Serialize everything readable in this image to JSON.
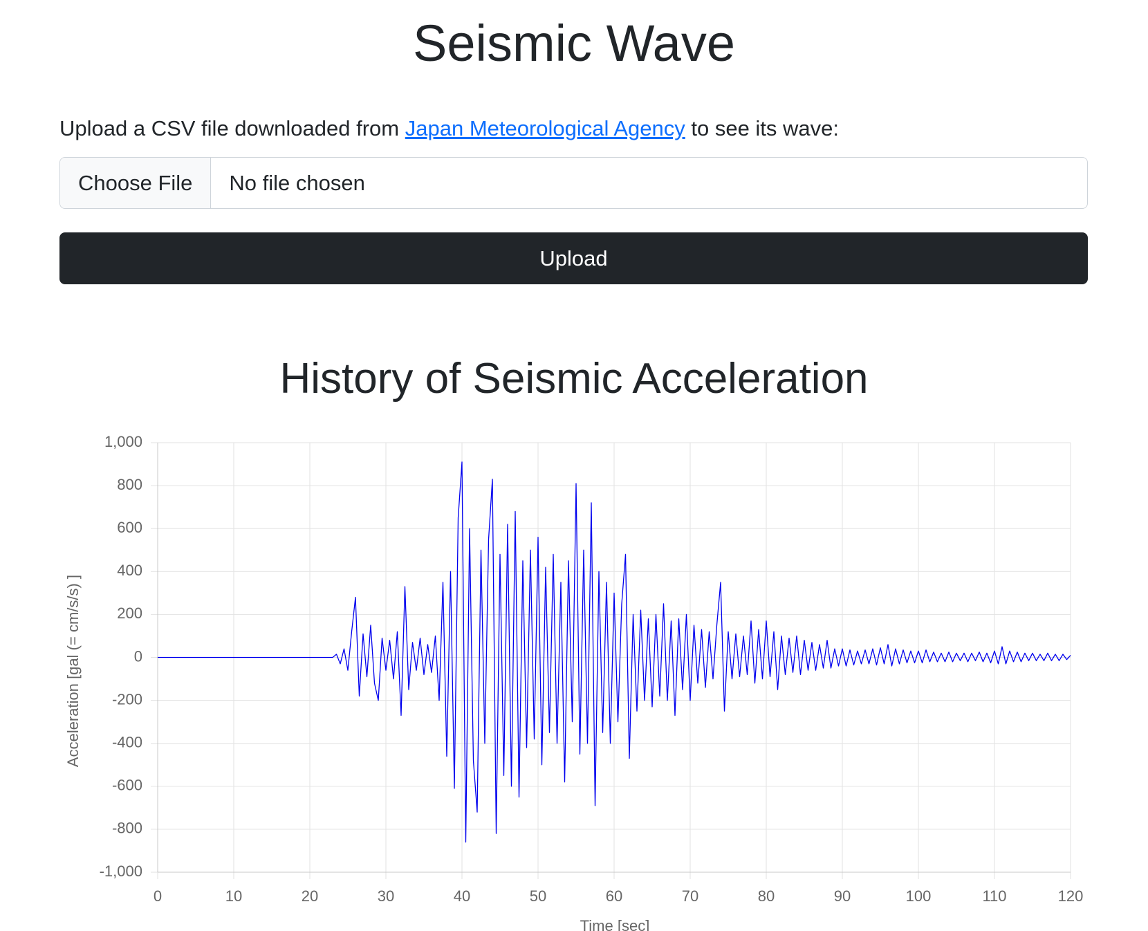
{
  "header": {
    "title": "Seismic Wave"
  },
  "intro": {
    "text_before": "Upload a CSV file downloaded from",
    "link": "Japan Meteorological Agency",
    "text_after": "to see its wave:"
  },
  "file_input": {
    "button": "Choose File",
    "status": "No file chosen"
  },
  "upload_button": "Upload",
  "chart_data": {
    "type": "line",
    "title": "History of Seismic Acceleration",
    "x_label": "Time [sec]",
    "y_label": "Acceleration [gal (= cm/s/s) ]",
    "color": "#0000ee",
    "grid": true,
    "xlim": [
      0,
      120
    ],
    "ylim": [
      -1000,
      1000
    ],
    "xticks": [
      0,
      10,
      20,
      30,
      40,
      50,
      60,
      70,
      80,
      90,
      100,
      110,
      120
    ],
    "yticks": [
      {
        "value": 1000,
        "label": "1,000"
      },
      800,
      600,
      400,
      200,
      0,
      -200,
      -400,
      -600,
      -800,
      {
        "value": -1000,
        "label": "-1,000"
      }
    ],
    "x": [
      0,
      23,
      23.5,
      24,
      24.5,
      25,
      25.5,
      26,
      26.5,
      27,
      27.5,
      28,
      28.5,
      29,
      29.5,
      30,
      30.5,
      31,
      31.5,
      32,
      32.5,
      33,
      33.5,
      34,
      34.5,
      35,
      35.5,
      36,
      36.5,
      37,
      37.5,
      38,
      38.5,
      39,
      39.5,
      40,
      40.5,
      41,
      41.5,
      42,
      42.5,
      43,
      43.5,
      44,
      44.5,
      45,
      45.5,
      46,
      46.5,
      47,
      47.5,
      48,
      48.5,
      49,
      49.5,
      50,
      50.5,
      51,
      51.5,
      52,
      52.5,
      53,
      53.5,
      54,
      54.5,
      55,
      55.5,
      56,
      56.5,
      57,
      57.5,
      58,
      58.5,
      59,
      59.5,
      60,
      60.5,
      61,
      61.5,
      62,
      62.5,
      63,
      63.5,
      64,
      64.5,
      65,
      65.5,
      66,
      66.5,
      67,
      67.5,
      68,
      68.5,
      69,
      69.5,
      70,
      70.5,
      71,
      71.5,
      72,
      72.5,
      73,
      73.5,
      74,
      74.5,
      75,
      75.5,
      76,
      76.5,
      77,
      77.5,
      78,
      78.5,
      79,
      79.5,
      80,
      80.5,
      81,
      81.5,
      82,
      82.5,
      83,
      83.5,
      84,
      84.5,
      85,
      85.5,
      86,
      86.5,
      87,
      87.5,
      88,
      88.5,
      89,
      89.5,
      90,
      90.5,
      91,
      91.5,
      92,
      92.5,
      93,
      93.5,
      94,
      94.5,
      95,
      95.5,
      96,
      96.5,
      97,
      97.5,
      98,
      98.5,
      99,
      99.5,
      100,
      100.5,
      101,
      101.5,
      102,
      102.5,
      103,
      103.5,
      104,
      104.5,
      105,
      105.5,
      106,
      106.5,
      107,
      107.5,
      108,
      108.5,
      109,
      109.5,
      110,
      110.5,
      111,
      111.5,
      112,
      112.5,
      113,
      113.5,
      114,
      114.5,
      115,
      115.5,
      116,
      116.5,
      117,
      117.5,
      118,
      118.5,
      119,
      119.5,
      120
    ],
    "values": [
      0,
      0,
      15,
      -30,
      40,
      -60,
      120,
      280,
      -180,
      110,
      -90,
      150,
      -120,
      -200,
      90,
      -60,
      80,
      -100,
      120,
      -270,
      330,
      -150,
      70,
      -60,
      90,
      -80,
      60,
      -70,
      100,
      -200,
      350,
      -460,
      400,
      -610,
      650,
      910,
      -860,
      600,
      -480,
      -720,
      500,
      -400,
      550,
      830,
      -820,
      480,
      -550,
      620,
      -600,
      680,
      -650,
      450,
      -420,
      500,
      -380,
      560,
      -500,
      420,
      -350,
      480,
      -400,
      350,
      -580,
      450,
      -300,
      810,
      -450,
      500,
      -400,
      720,
      -690,
      400,
      -350,
      350,
      -400,
      300,
      -300,
      250,
      480,
      -470,
      200,
      -250,
      220,
      -200,
      180,
      -230,
      200,
      -180,
      250,
      -200,
      170,
      -270,
      180,
      -150,
      200,
      -200,
      150,
      -120,
      130,
      -140,
      120,
      -100,
      150,
      350,
      -250,
      120,
      -100,
      110,
      -90,
      100,
      -80,
      170,
      -120,
      130,
      -100,
      170,
      -90,
      120,
      -150,
      100,
      -80,
      90,
      -70,
      100,
      -80,
      80,
      -60,
      70,
      -60,
      60,
      -50,
      80,
      -50,
      40,
      -40,
      40,
      -40,
      35,
      -35,
      30,
      -30,
      35,
      -30,
      40,
      -35,
      45,
      -30,
      60,
      -40,
      40,
      -30,
      35,
      -25,
      30,
      -25,
      30,
      -25,
      35,
      -20,
      25,
      -20,
      20,
      -20,
      25,
      -20,
      20,
      -15,
      20,
      -20,
      20,
      -15,
      25,
      -20,
      20,
      -25,
      30,
      -30,
      50,
      -30,
      30,
      -20,
      25,
      -20,
      20,
      -15,
      20,
      -15,
      15,
      -15,
      20,
      -15,
      15,
      -15,
      15,
      -10,
      10
    ]
  }
}
